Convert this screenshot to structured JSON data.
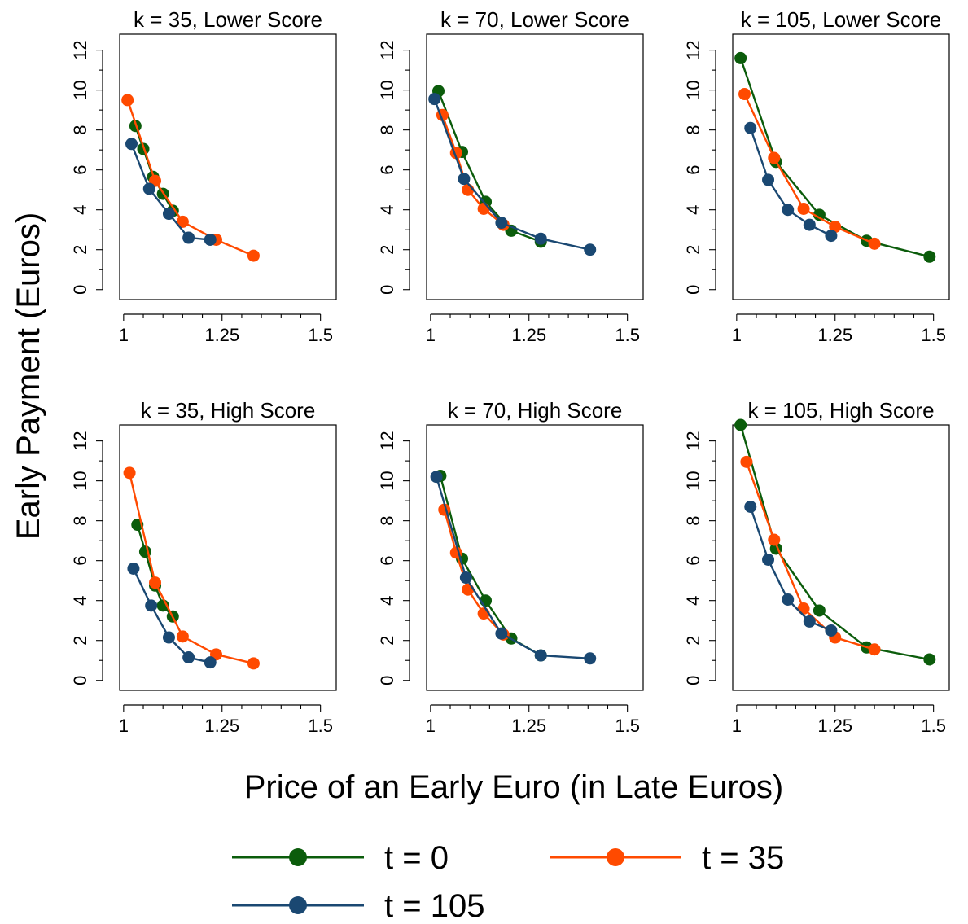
{
  "chart_data": {
    "type": "line",
    "ylabel": "Early Payment (Euros)",
    "xlabel": "Price of an Early Euro (in Late Euros)",
    "xlim": [
      0.99,
      1.54
    ],
    "ylim": [
      -0.5,
      12.8
    ],
    "xticks": [
      1,
      1.25,
      1.5
    ],
    "xtick_labels": [
      "1",
      "1.25",
      "1.5"
    ],
    "yticks": [
      0,
      2,
      4,
      6,
      8,
      10,
      12
    ],
    "ytick_labels": [
      "0",
      "2",
      "4",
      "6",
      "8",
      "10",
      "12"
    ],
    "legend": {
      "placement": "bottom",
      "entries": [
        {
          "label": "t = 0",
          "color": "#0b5c0b"
        },
        {
          "label": "t = 35",
          "color": "#ff4a00"
        },
        {
          "label": "t = 105",
          "color": "#1a4872"
        }
      ]
    },
    "panels": [
      {
        "title": "k = 35, Lower Score",
        "series": [
          {
            "name": "t = 0",
            "color": "#0b5c0b",
            "x": [
              1.03,
              1.05,
              1.075,
              1.1,
              1.125
            ],
            "y": [
              8.2,
              7.05,
              5.65,
              4.8,
              3.95
            ]
          },
          {
            "name": "t = 35",
            "color": "#ff4a00",
            "x": [
              1.01,
              1.08,
              1.15,
              1.235,
              1.33
            ],
            "y": [
              9.5,
              5.45,
              3.4,
              2.5,
              1.7
            ]
          },
          {
            "name": "t = 105",
            "color": "#1a4872",
            "x": [
              1.02,
              1.065,
              1.115,
              1.165,
              1.22
            ],
            "y": [
              7.3,
              5.05,
              3.8,
              2.6,
              2.5
            ]
          }
        ]
      },
      {
        "title": "k = 70, Lower Score",
        "series": [
          {
            "name": "t = 0",
            "color": "#0b5c0b",
            "x": [
              1.02,
              1.08,
              1.14,
              1.205,
              1.28
            ],
            "y": [
              9.95,
              6.9,
              4.4,
              2.95,
              2.4
            ]
          },
          {
            "name": "t = 35",
            "color": "#ff4a00",
            "x": [
              1.03,
              1.065,
              1.095,
              1.135,
              1.185
            ],
            "y": [
              8.75,
              6.85,
              5.0,
              4.05,
              3.25
            ]
          },
          {
            "name": "t = 105",
            "color": "#1a4872",
            "x": [
              1.01,
              1.085,
              1.18,
              1.28,
              1.405
            ],
            "y": [
              9.55,
              5.55,
              3.35,
              2.55,
              2.0
            ]
          }
        ]
      },
      {
        "title": "k = 105, Lower Score",
        "series": [
          {
            "name": "t = 0",
            "color": "#0b5c0b",
            "x": [
              1.01,
              1.1,
              1.21,
              1.33,
              1.49
            ],
            "y": [
              11.6,
              6.4,
              3.75,
              2.45,
              1.65
            ]
          },
          {
            "name": "t = 35",
            "color": "#ff4a00",
            "x": [
              1.02,
              1.095,
              1.17,
              1.25,
              1.35
            ],
            "y": [
              9.8,
              6.6,
              4.05,
              3.15,
              2.3
            ]
          },
          {
            "name": "t = 105",
            "color": "#1a4872",
            "x": [
              1.035,
              1.08,
              1.13,
              1.185,
              1.24
            ],
            "y": [
              8.1,
              5.5,
              4.0,
              3.25,
              2.7
            ]
          }
        ]
      },
      {
        "title": "k = 35, High Score",
        "series": [
          {
            "name": "t = 0",
            "color": "#0b5c0b",
            "x": [
              1.035,
              1.055,
              1.08,
              1.1,
              1.125
            ],
            "y": [
              7.8,
              6.45,
              4.75,
              3.75,
              3.2
            ]
          },
          {
            "name": "t = 35",
            "color": "#ff4a00",
            "x": [
              1.015,
              1.08,
              1.15,
              1.235,
              1.33
            ],
            "y": [
              10.4,
              4.9,
              2.2,
              1.3,
              0.85
            ]
          },
          {
            "name": "t = 105",
            "color": "#1a4872",
            "x": [
              1.025,
              1.07,
              1.115,
              1.165,
              1.22
            ],
            "y": [
              5.6,
              3.75,
              2.15,
              1.15,
              0.9
            ]
          }
        ]
      },
      {
        "title": "k = 70, High Score",
        "series": [
          {
            "name": "t = 0",
            "color": "#0b5c0b",
            "x": [
              1.025,
              1.08,
              1.14,
              1.205,
              1.28
            ],
            "y": [
              10.25,
              6.1,
              4.0,
              2.1,
              1.25
            ]
          },
          {
            "name": "t = 35",
            "color": "#ff4a00",
            "x": [
              1.035,
              1.065,
              1.095,
              1.135,
              1.185
            ],
            "y": [
              8.55,
              6.4,
              4.55,
              3.35,
              2.3
            ]
          },
          {
            "name": "t = 105",
            "color": "#1a4872",
            "x": [
              1.015,
              1.09,
              1.18,
              1.28,
              1.405
            ],
            "y": [
              10.2,
              5.15,
              2.35,
              1.25,
              1.1
            ]
          }
        ]
      },
      {
        "title": "k = 105, High Score",
        "series": [
          {
            "name": "t = 0",
            "color": "#0b5c0b",
            "x": [
              1.01,
              1.1,
              1.21,
              1.33,
              1.49
            ],
            "y": [
              12.8,
              6.6,
              3.5,
              1.65,
              1.05
            ]
          },
          {
            "name": "t = 35",
            "color": "#ff4a00",
            "x": [
              1.025,
              1.095,
              1.17,
              1.25,
              1.35
            ],
            "y": [
              10.95,
              7.05,
              3.6,
              2.15,
              1.55
            ]
          },
          {
            "name": "t = 105",
            "color": "#1a4872",
            "x": [
              1.035,
              1.08,
              1.13,
              1.185,
              1.24
            ],
            "y": [
              8.7,
              6.05,
              4.05,
              2.95,
              2.5
            ]
          }
        ]
      }
    ]
  }
}
